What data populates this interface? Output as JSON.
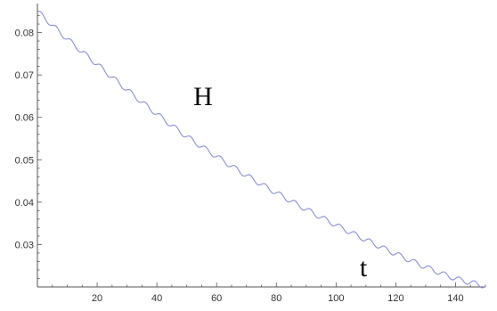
{
  "chart_data": {
    "type": "line",
    "title": "",
    "xlabel": "t",
    "ylabel": "H",
    "xlim": [
      0,
      150
    ],
    "ylim": [
      0.02,
      0.086
    ],
    "xticks": [
      20,
      40,
      60,
      80,
      100,
      120,
      140
    ],
    "yticks": [
      0.03,
      0.04,
      0.05,
      0.06,
      0.07,
      0.08
    ],
    "xtick_labels": [
      "20",
      "40",
      "60",
      "80",
      "100",
      "120",
      "140"
    ],
    "ytick_labels": [
      "0.03",
      "0.04",
      "0.05",
      "0.06",
      "0.07",
      "0.08"
    ],
    "grid": false,
    "legend": "none",
    "series_color": "#8a8fd1",
    "oscillation": {
      "period": 5,
      "amplitude": 0.0006
    },
    "series": [
      {
        "x": [
          0,
          10,
          20,
          30,
          40,
          50,
          60,
          70,
          80,
          90,
          100,
          110,
          120,
          130,
          140,
          150
        ],
        "y": [
          0.085,
          0.0785,
          0.0725,
          0.0665,
          0.0608,
          0.0555,
          0.0508,
          0.0463,
          0.0422,
          0.0383,
          0.0346,
          0.0311,
          0.0278,
          0.0247,
          0.022,
          0.0202
        ]
      }
    ]
  }
}
